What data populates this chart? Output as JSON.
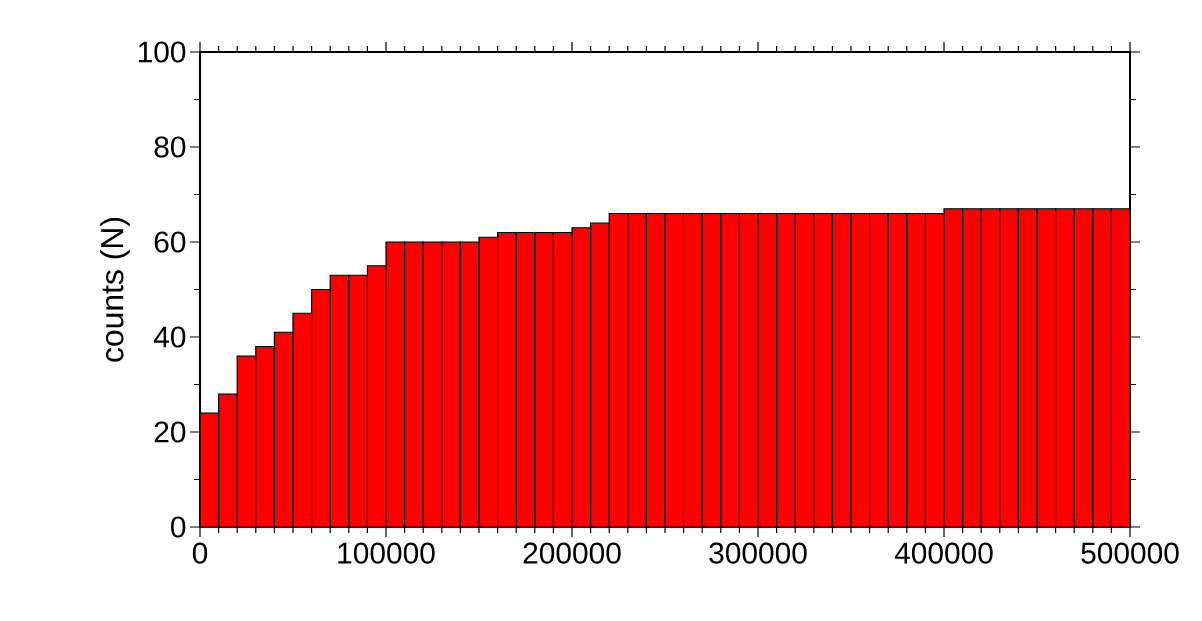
{
  "chart_data": {
    "type": "histogram",
    "ylabel": "counts (N)",
    "bins": [
      0,
      10000,
      20000,
      30000,
      40000,
      50000,
      60000,
      70000,
      80000,
      90000,
      100000,
      110000,
      120000,
      130000,
      140000,
      150000,
      160000,
      170000,
      180000,
      190000,
      200000,
      210000,
      220000,
      230000,
      240000,
      250000,
      260000,
      270000,
      280000,
      290000,
      300000,
      310000,
      320000,
      330000,
      340000,
      350000,
      360000,
      370000,
      380000,
      390000,
      400000,
      410000,
      420000,
      430000,
      440000,
      450000,
      460000,
      470000,
      480000,
      490000,
      500000
    ],
    "values": [
      24,
      28,
      36,
      38,
      41,
      45,
      50,
      53,
      53,
      55,
      60,
      60,
      60,
      60,
      60,
      61,
      62,
      62,
      62,
      62,
      63,
      64,
      66,
      66,
      66,
      66,
      66,
      66,
      66,
      66,
      66,
      66,
      66,
      66,
      66,
      66,
      66,
      66,
      66,
      66,
      67,
      67,
      67,
      67,
      67,
      67,
      67,
      67,
      67,
      67
    ],
    "color": "#ff0000",
    "xlim": [
      0,
      500000
    ],
    "ylim": [
      0,
      100
    ],
    "xticks": [
      0,
      100000,
      200000,
      300000,
      400000,
      500000
    ],
    "yticks": [
      0,
      20,
      40,
      60,
      80,
      100
    ],
    "grid": false
  }
}
